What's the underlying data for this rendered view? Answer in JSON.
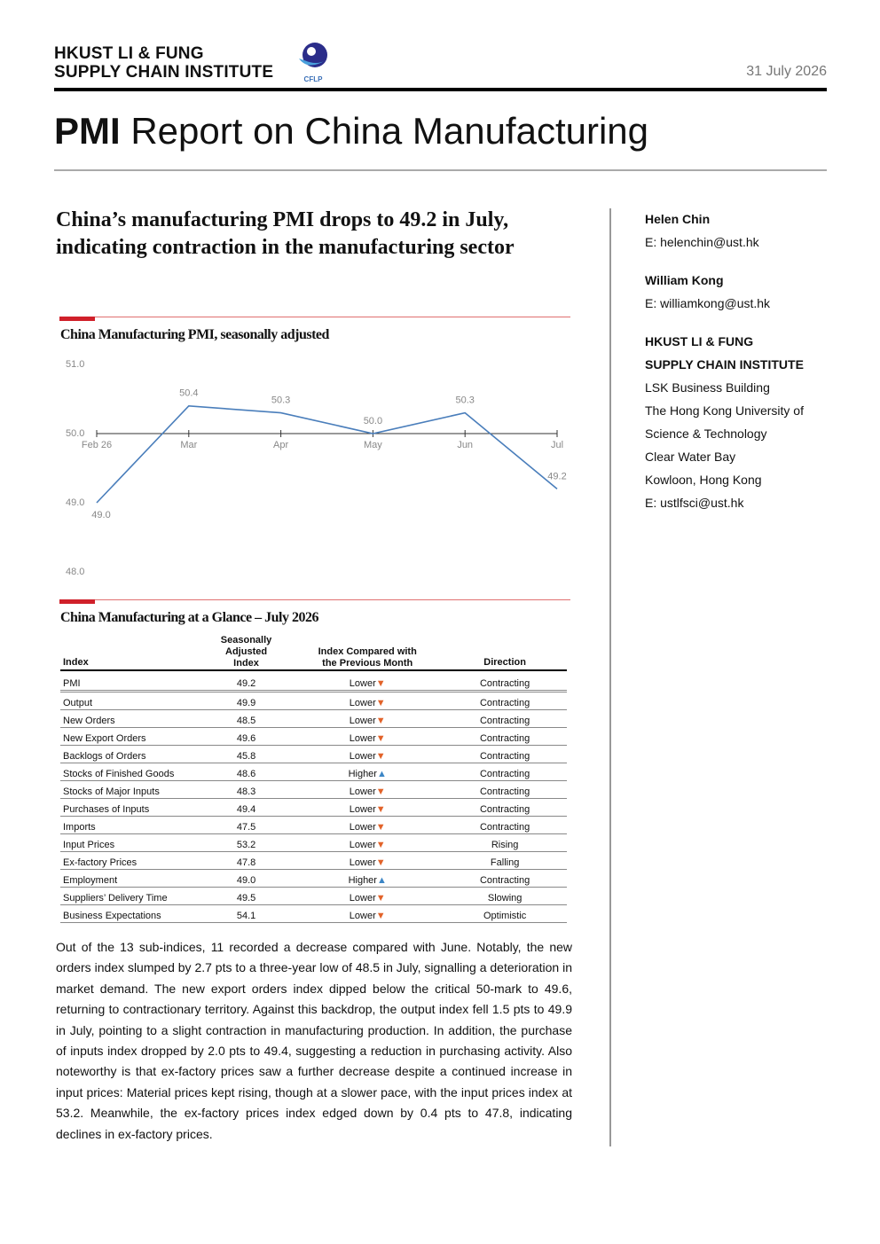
{
  "header": {
    "org": [
      "HKUST LI & FUNG",
      "SUPPLY CHAIN INSTITUTE"
    ],
    "logo": "CFLP",
    "date": "31 July 2026"
  },
  "title": {
    "bold": "PMI",
    "text": "Report on China Manufacturing"
  },
  "headline": "China’s manufacturing PMI drops to 49.2 in July, indicating contraction in the manufacturing sector",
  "chart_data": {
    "type": "line",
    "title": "China Manufacturing PMI, seasonally adjusted",
    "categories": [
      "Feb 26",
      "Mar",
      "Apr",
      "May",
      "Jun",
      "Jul"
    ],
    "values": [
      49.0,
      50.4,
      50.3,
      50.0,
      50.3,
      49.2
    ],
    "value_labels": [
      "49.0",
      "50.4",
      "50.3",
      "50.0",
      "50.3",
      "49.2"
    ],
    "color": "#4a7ebb",
    "ylim": [
      48,
      51
    ],
    "yticks": [
      {
        "value": 48,
        "label": "48.0"
      },
      {
        "value": 49,
        "label": "49.0"
      },
      {
        "value": 50,
        "label": "50.0"
      },
      {
        "value": 51,
        "label": "51.0"
      }
    ],
    "x_axis_at": 50,
    "grid": false
  },
  "table": {
    "title": "China Manufacturing at a Glance – July 2026",
    "columns": [
      "Index",
      "Seasonally Adjusted Index",
      "Index Compared with the Previous Month",
      "Direction"
    ],
    "arrow_colors": {
      "▲": "#3c86c6",
      "▼": "#e2632a"
    },
    "rows": [
      {
        "index": "PMI",
        "value": "49.2",
        "change": "Lower",
        "arrow": "▼",
        "direction": "Contracting"
      },
      {
        "index": "Output",
        "value": "49.9",
        "change": "Lower",
        "arrow": "▼",
        "direction": "Contracting"
      },
      {
        "index": "New Orders",
        "value": "48.5",
        "change": "Lower",
        "arrow": "▼",
        "direction": "Contracting"
      },
      {
        "index": "New Export Orders",
        "value": "49.6",
        "change": "Lower",
        "arrow": "▼",
        "direction": "Contracting"
      },
      {
        "index": "Backlogs of Orders",
        "value": "45.8",
        "change": "Lower",
        "arrow": "▼",
        "direction": "Contracting"
      },
      {
        "index": "Stocks of Finished Goods",
        "value": "48.6",
        "change": "Higher",
        "arrow": "▲",
        "direction": "Contracting"
      },
      {
        "index": "Stocks of Major Inputs",
        "value": "48.3",
        "change": "Lower",
        "arrow": "▼",
        "direction": "Contracting"
      },
      {
        "index": "Purchases of Inputs",
        "value": "49.4",
        "change": "Lower",
        "arrow": "▼",
        "direction": "Contracting"
      },
      {
        "index": "Imports",
        "value": "47.5",
        "change": "Lower",
        "arrow": "▼",
        "direction": "Contracting"
      },
      {
        "index": "Input Prices",
        "value": "53.2",
        "change": "Lower",
        "arrow": "▼",
        "direction": "Rising"
      },
      {
        "index": "Ex-factory Prices",
        "value": "47.8",
        "change": "Lower",
        "arrow": "▼",
        "direction": "Falling"
      },
      {
        "index": "Employment",
        "value": "49.0",
        "change": "Higher",
        "arrow": "▲",
        "direction": "Contracting"
      },
      {
        "index": "Suppliers’ Delivery Time",
        "value": "49.5",
        "change": "Lower",
        "arrow": "▼",
        "direction": "Slowing"
      },
      {
        "index": "Business Expectations",
        "value": "54.1",
        "change": "Lower",
        "arrow": "▼",
        "direction": "Optimistic"
      }
    ]
  },
  "body": "Out of the 13 sub-indices, 11 recorded a decrease compared with June. Notably, the new orders index slumped by 2.7 pts to a three-year low of 48.5 in July, signalling a deterioration in market demand. The new export orders index dipped below the critical 50-mark to 49.6, returning to contractionary territory. Against this backdrop, the output index fell 1.5 pts to 49.9 in July, pointing to a slight contraction in manufacturing production. In addition, the purchase of inputs index dropped by 2.0 pts to 49.4, suggesting a reduction in purchasing activity. Also noteworthy is that ex-factory prices saw a further decrease despite a continued increase in input prices: Material prices kept rising, though at a slower pace, with the input prices index at 53.2. Meanwhile, the ex-factory prices index edged down by 0.4 pts to 47.8, indicating declines in ex-factory prices.",
  "sidebar": {
    "authors": [
      {
        "name": "Helen Chin",
        "email": "E: helenchin@ust.hk"
      },
      {
        "name": "William Kong",
        "email": "E: williamkong@ust.hk"
      }
    ],
    "institute": {
      "name": [
        "HKUST LI & FUNG",
        "SUPPLY CHAIN INSTITUTE"
      ],
      "address": [
        "LSK Business Building",
        "The Hong Kong University of",
        "Science & Technology",
        "Clear Water Bay",
        "Kowloon, Hong Kong",
        "E: ustlfsci@ust.hk"
      ]
    }
  }
}
